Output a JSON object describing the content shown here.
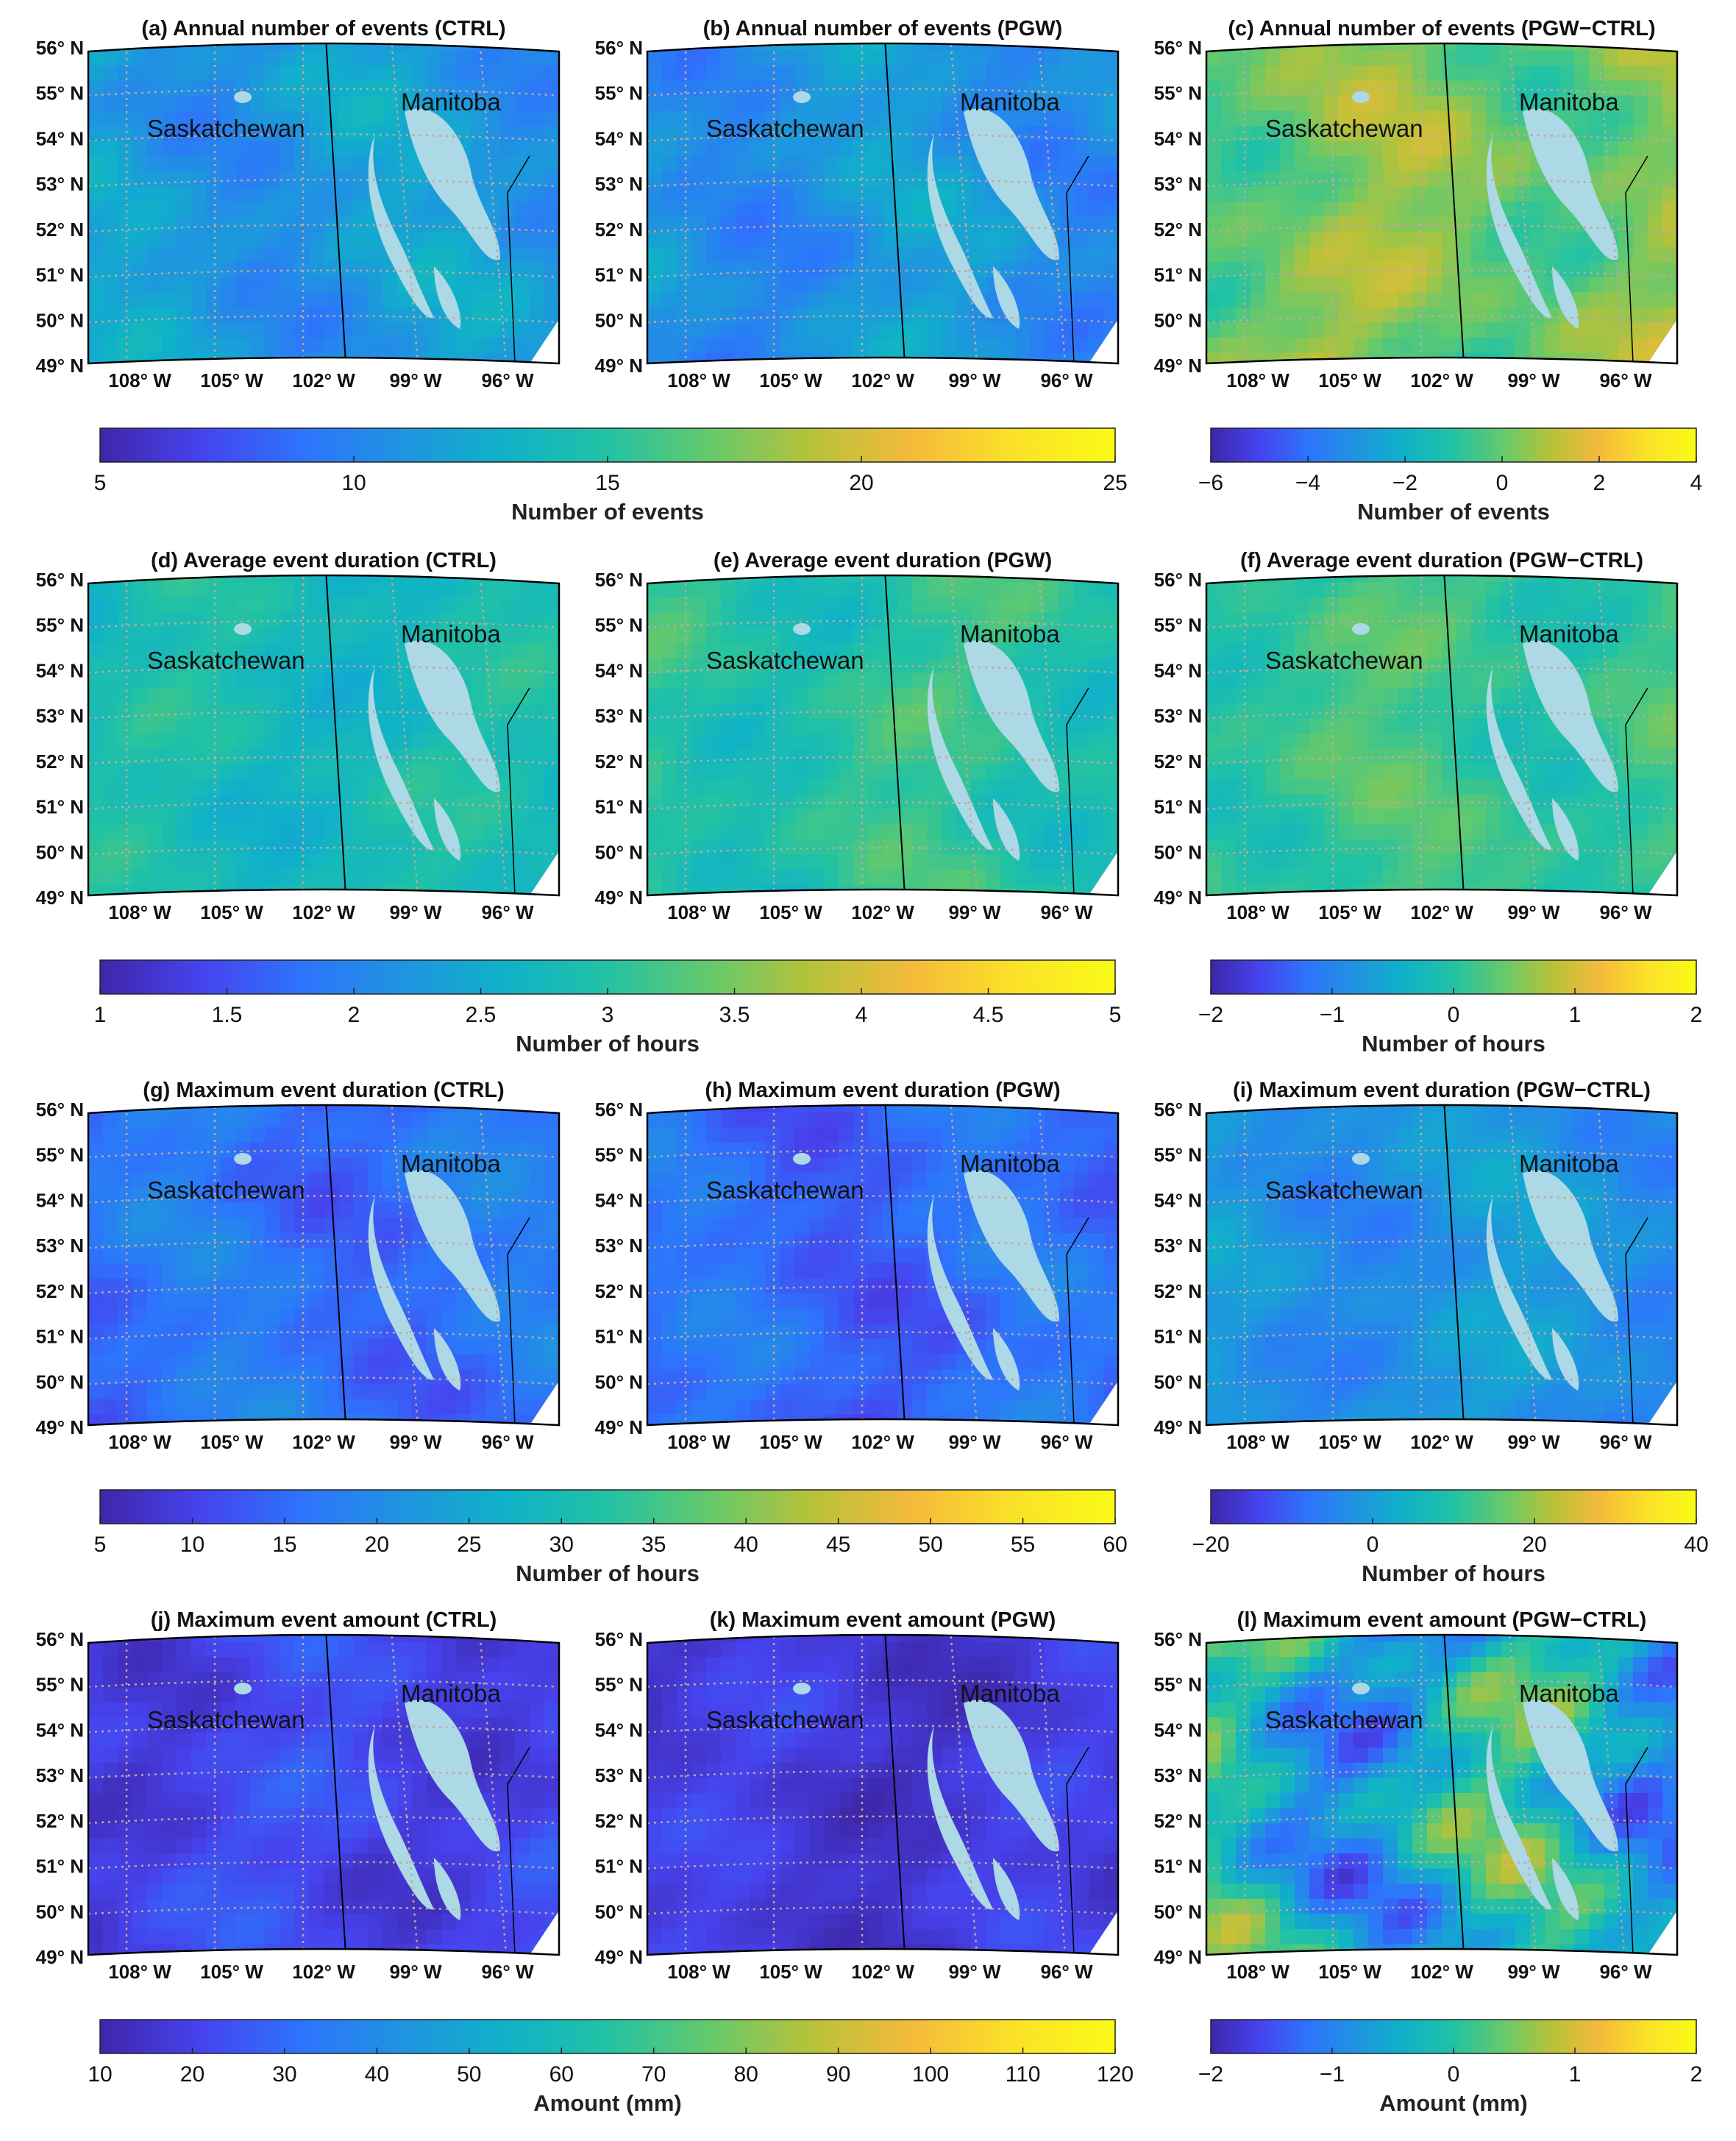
{
  "colors": {
    "parula": [
      "#3e26a8",
      "#4643ee",
      "#2d74fc",
      "#1f94e0",
      "#0fb2c8",
      "#22c2a4",
      "#64c96c",
      "#b6c23a",
      "#f4ba3b",
      "#fbe128",
      "#f9fb15"
    ],
    "water": "#add8e6",
    "grid": "#c0a8a0",
    "border": "#000000"
  },
  "maps": {
    "lat_labels": [
      "56° N",
      "55° N",
      "54° N",
      "53° N",
      "52° N",
      "51° N",
      "50° N",
      "49° N"
    ],
    "lon_labels": [
      "108° W",
      "105° W",
      "102° W",
      "99° W",
      "96° W"
    ],
    "provinces": [
      "Saskatchewan",
      "Manitoba"
    ]
  },
  "panels": [
    {
      "id": "a",
      "title": "(a) Annual number of events (CTRL)",
      "field_level": 0.32,
      "variation": 0.12
    },
    {
      "id": "b",
      "title": "(b) Annual number of events (PGW)",
      "field_level": 0.3,
      "variation": 0.12
    },
    {
      "id": "c",
      "title": "(c) Annual number of events (PGW−CTRL)",
      "field_level": 0.62,
      "variation": 0.14
    },
    {
      "id": "d",
      "title": "(d) Average event duration (CTRL)",
      "field_level": 0.45,
      "variation": 0.09
    },
    {
      "id": "e",
      "title": "(e) Average event duration (PGW)",
      "field_level": 0.5,
      "variation": 0.1
    },
    {
      "id": "f",
      "title": "(f) Average event duration (PGW−CTRL)",
      "field_level": 0.53,
      "variation": 0.1
    },
    {
      "id": "g",
      "title": "(g) Maximum event duration (CTRL)",
      "field_level": 0.2,
      "variation": 0.1
    },
    {
      "id": "h",
      "title": "(h) Maximum event duration (PGW)",
      "field_level": 0.18,
      "variation": 0.1
    },
    {
      "id": "i",
      "title": "(i) Maximum event duration (PGW−CTRL)",
      "field_level": 0.3,
      "variation": 0.1
    },
    {
      "id": "j",
      "title": "(j) Maximum event amount (CTRL)",
      "field_level": 0.1,
      "variation": 0.08
    },
    {
      "id": "k",
      "title": "(k) Maximum event amount (PGW)",
      "field_level": 0.07,
      "variation": 0.07
    },
    {
      "id": "l",
      "title": "(l) Maximum event amount (PGW−CTRL)",
      "field_level": 0.4,
      "variation": 0.35
    }
  ],
  "colorbars": [
    {
      "id": "cb-row1-left",
      "label": "Number of events",
      "ticks": [
        "5",
        "10",
        "15",
        "20",
        "25"
      ]
    },
    {
      "id": "cb-row1-right",
      "label": "Number of events",
      "ticks": [
        "−6",
        "−4",
        "−2",
        "0",
        "2",
        "4"
      ]
    },
    {
      "id": "cb-row2-left",
      "label": "Number of hours",
      "ticks": [
        "1",
        "1.5",
        "2",
        "2.5",
        "3",
        "3.5",
        "4",
        "4.5",
        "5"
      ]
    },
    {
      "id": "cb-row2-right",
      "label": "Number of hours",
      "ticks": [
        "−2",
        "−1",
        "0",
        "1",
        "2"
      ]
    },
    {
      "id": "cb-row3-left",
      "label": "Number of hours",
      "ticks": [
        "5",
        "10",
        "15",
        "20",
        "25",
        "30",
        "35",
        "40",
        "45",
        "50",
        "55",
        "60"
      ]
    },
    {
      "id": "cb-row3-right",
      "label": "Number of hours",
      "ticks": [
        "−20",
        "0",
        "20",
        "40"
      ]
    },
    {
      "id": "cb-row4-left",
      "label": "Amount (mm)",
      "ticks": [
        "10",
        "20",
        "30",
        "40",
        "50",
        "60",
        "70",
        "80",
        "90",
        "100",
        "110",
        "120"
      ]
    },
    {
      "id": "cb-row4-right",
      "label": "Amount (mm)",
      "ticks": [
        "−2",
        "−1",
        "0",
        "1",
        "2"
      ]
    }
  ]
}
